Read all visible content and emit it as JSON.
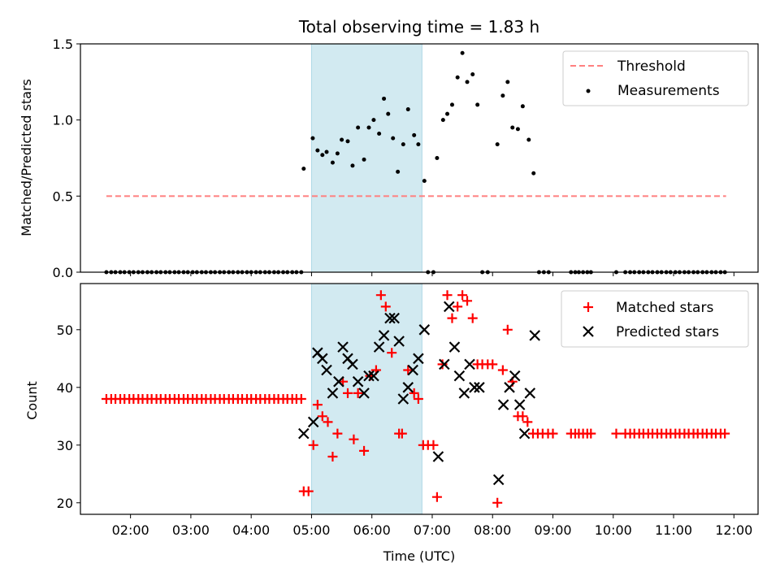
{
  "figure": {
    "title": "Total observing time = 1.83 h"
  },
  "chart_data": [
    {
      "type": "scatter",
      "ylabel": "Matched/Predicted stars",
      "xlabel": "",
      "xlim": [
        1.17,
        12.4
      ],
      "ylim": [
        0,
        1.5
      ],
      "yticks": [
        0.0,
        0.5,
        1.0,
        1.5
      ],
      "ytick_labels": [
        "0.0",
        "0.5",
        "1.0",
        "1.5"
      ],
      "highlight_span": {
        "x0": 5.0,
        "x1": 6.83,
        "color": "#add8e6"
      },
      "legend": {
        "position": "top-right",
        "entries": [
          "Threshold",
          "Measurements"
        ]
      },
      "series": [
        {
          "name": "Threshold",
          "style": "dashed-line",
          "color": "#ff7f7f",
          "x": [
            1.6,
            11.87
          ],
          "y": [
            0.5,
            0.5
          ]
        },
        {
          "name": "Measurements",
          "style": "dot",
          "color": "#000000",
          "x": [
            1.6,
            1.68,
            1.75,
            1.83,
            1.9,
            1.98,
            2.05,
            2.13,
            2.2,
            2.28,
            2.35,
            2.43,
            2.5,
            2.58,
            2.65,
            2.73,
            2.8,
            2.88,
            2.95,
            3.03,
            3.1,
            3.18,
            3.25,
            3.33,
            3.4,
            3.48,
            3.55,
            3.63,
            3.7,
            3.78,
            3.85,
            3.93,
            4.0,
            4.08,
            4.15,
            4.23,
            4.3,
            4.38,
            4.45,
            4.53,
            4.6,
            4.68,
            4.75,
            4.83,
            4.87,
            5.02,
            5.1,
            5.18,
            5.25,
            5.35,
            5.43,
            5.5,
            5.6,
            5.68,
            5.77,
            5.87,
            5.95,
            6.03,
            6.12,
            6.2,
            6.27,
            6.35,
            6.43,
            6.52,
            6.6,
            6.7,
            6.77,
            6.87,
            6.93,
            7.02,
            7.08,
            7.18,
            7.25,
            7.33,
            7.42,
            7.5,
            7.58,
            7.67,
            7.75,
            7.83,
            7.92,
            8.08,
            8.17,
            8.25,
            8.33,
            8.42,
            8.5,
            8.6,
            8.68,
            8.77,
            8.85,
            8.93,
            9.3,
            9.37,
            9.43,
            9.5,
            9.57,
            9.63,
            10.05,
            10.2,
            10.28,
            10.35,
            10.43,
            10.5,
            10.58,
            10.65,
            10.73,
            10.8,
            10.88,
            10.95,
            11.03,
            11.1,
            11.18,
            11.25,
            11.33,
            11.4,
            11.48,
            11.55,
            11.63,
            11.7,
            11.78,
            11.85
          ],
          "y": [
            0,
            0,
            0,
            0,
            0,
            0,
            0,
            0,
            0,
            0,
            0,
            0,
            0,
            0,
            0,
            0,
            0,
            0,
            0,
            0,
            0,
            0,
            0,
            0,
            0,
            0,
            0,
            0,
            0,
            0,
            0,
            0,
            0,
            0,
            0,
            0,
            0,
            0,
            0,
            0,
            0,
            0,
            0,
            0,
            0.68,
            0.88,
            0.8,
            0.77,
            0.79,
            0.72,
            0.78,
            0.87,
            0.86,
            0.7,
            0.95,
            0.74,
            0.95,
            1.0,
            0.91,
            1.14,
            1.04,
            0.88,
            0.66,
            0.84,
            1.07,
            0.9,
            0.84,
            0.6,
            0,
            0,
            0.75,
            1.0,
            1.04,
            1.1,
            1.28,
            1.44,
            1.25,
            1.3,
            1.1,
            0,
            0,
            0.84,
            1.16,
            1.25,
            0.95,
            0.94,
            1.09,
            0.87,
            0.65,
            0,
            0,
            0,
            0,
            0,
            0,
            0,
            0,
            0,
            0,
            0,
            0,
            0,
            0,
            0,
            0,
            0,
            0,
            0,
            0,
            0,
            0,
            0,
            0,
            0,
            0,
            0,
            0,
            0,
            0,
            0,
            0,
            0
          ]
        }
      ]
    },
    {
      "type": "scatter",
      "ylabel": "Count",
      "xlabel": "Time (UTC)",
      "xlim": [
        1.17,
        12.4
      ],
      "ylim": [
        18,
        58
      ],
      "xticks": [
        2,
        3,
        4,
        5,
        6,
        7,
        8,
        9,
        10,
        11,
        12
      ],
      "xtick_labels": [
        "02:00",
        "03:00",
        "04:00",
        "05:00",
        "06:00",
        "07:00",
        "08:00",
        "09:00",
        "10:00",
        "11:00",
        "12:00"
      ],
      "yticks": [
        20,
        30,
        40,
        50
      ],
      "ytick_labels": [
        "20",
        "30",
        "40",
        "50"
      ],
      "highlight_span": {
        "x0": 5.0,
        "x1": 6.83,
        "color": "#add8e6"
      },
      "legend": {
        "position": "top-right",
        "entries": [
          "Matched stars",
          "Predicted stars"
        ]
      },
      "series": [
        {
          "name": "Matched stars",
          "style": "plus",
          "color": "#ff0000",
          "x": [
            1.6,
            1.68,
            1.75,
            1.83,
            1.9,
            1.98,
            2.05,
            2.13,
            2.2,
            2.28,
            2.35,
            2.43,
            2.5,
            2.58,
            2.65,
            2.73,
            2.8,
            2.88,
            2.95,
            3.03,
            3.1,
            3.18,
            3.25,
            3.33,
            3.4,
            3.48,
            3.55,
            3.63,
            3.7,
            3.78,
            3.85,
            3.93,
            4.0,
            4.08,
            4.15,
            4.23,
            4.3,
            4.38,
            4.45,
            4.53,
            4.6,
            4.68,
            4.75,
            4.83,
            4.87,
            4.95,
            5.03,
            5.1,
            5.18,
            5.27,
            5.35,
            5.43,
            5.52,
            5.6,
            5.7,
            5.77,
            5.87,
            5.97,
            6.07,
            6.15,
            6.23,
            6.33,
            6.45,
            6.5,
            6.6,
            6.7,
            6.77,
            6.85,
            6.93,
            7.02,
            7.08,
            7.17,
            7.25,
            7.33,
            7.42,
            7.5,
            7.58,
            7.67,
            7.75,
            7.83,
            7.92,
            8.0,
            8.08,
            8.17,
            8.25,
            8.33,
            8.42,
            8.5,
            8.58,
            8.67,
            8.75,
            8.83,
            8.92,
            9.0,
            9.3,
            9.37,
            9.43,
            9.5,
            9.57,
            9.63,
            10.05,
            10.2,
            10.28,
            10.35,
            10.43,
            10.5,
            10.58,
            10.65,
            10.73,
            10.8,
            10.88,
            10.95,
            11.03,
            11.1,
            11.18,
            11.25,
            11.33,
            11.4,
            11.48,
            11.55,
            11.63,
            11.7,
            11.78,
            11.85
          ],
          "y": [
            38,
            38,
            38,
            38,
            38,
            38,
            38,
            38,
            38,
            38,
            38,
            38,
            38,
            38,
            38,
            38,
            38,
            38,
            38,
            38,
            38,
            38,
            38,
            38,
            38,
            38,
            38,
            38,
            38,
            38,
            38,
            38,
            38,
            38,
            38,
            38,
            38,
            38,
            38,
            38,
            38,
            38,
            38,
            38,
            22,
            22,
            30,
            37,
            35,
            34,
            28,
            32,
            41,
            39,
            31,
            39,
            29,
            42,
            43,
            56,
            54,
            46,
            32,
            32,
            43,
            39,
            38,
            30,
            30,
            30,
            21,
            44,
            56,
            52,
            54,
            56,
            55,
            52,
            44,
            44,
            44,
            44,
            20,
            43,
            50,
            41,
            35,
            35,
            34,
            32,
            32,
            32,
            32,
            32,
            32,
            32,
            32,
            32,
            32,
            32,
            32,
            32,
            32,
            32,
            32,
            32,
            32,
            32,
            32,
            32,
            32,
            32,
            32,
            32,
            32,
            32,
            32,
            32,
            32,
            32,
            32,
            32,
            32,
            32
          ]
        },
        {
          "name": "Predicted stars",
          "style": "x",
          "color": "#000000",
          "x": [
            4.87,
            5.03,
            5.1,
            5.18,
            5.25,
            5.35,
            5.45,
            5.52,
            5.6,
            5.68,
            5.77,
            5.87,
            5.95,
            6.03,
            6.12,
            6.2,
            6.3,
            6.37,
            6.45,
            6.52,
            6.6,
            6.68,
            6.77,
            6.87,
            7.1,
            7.2,
            7.28,
            7.37,
            7.45,
            7.53,
            7.62,
            7.7,
            7.78,
            8.1,
            8.18,
            8.28,
            8.37,
            8.45,
            8.53,
            8.62,
            8.7
          ],
          "y": [
            32,
            34,
            46,
            45,
            43,
            39,
            41,
            47,
            45,
            44,
            41,
            39,
            42,
            42,
            47,
            49,
            52,
            52,
            48,
            38,
            40,
            43,
            45,
            50,
            28,
            44,
            54,
            47,
            42,
            39,
            44,
            40,
            40,
            24,
            37,
            40,
            42,
            37,
            32,
            39,
            49
          ]
        }
      ]
    }
  ]
}
